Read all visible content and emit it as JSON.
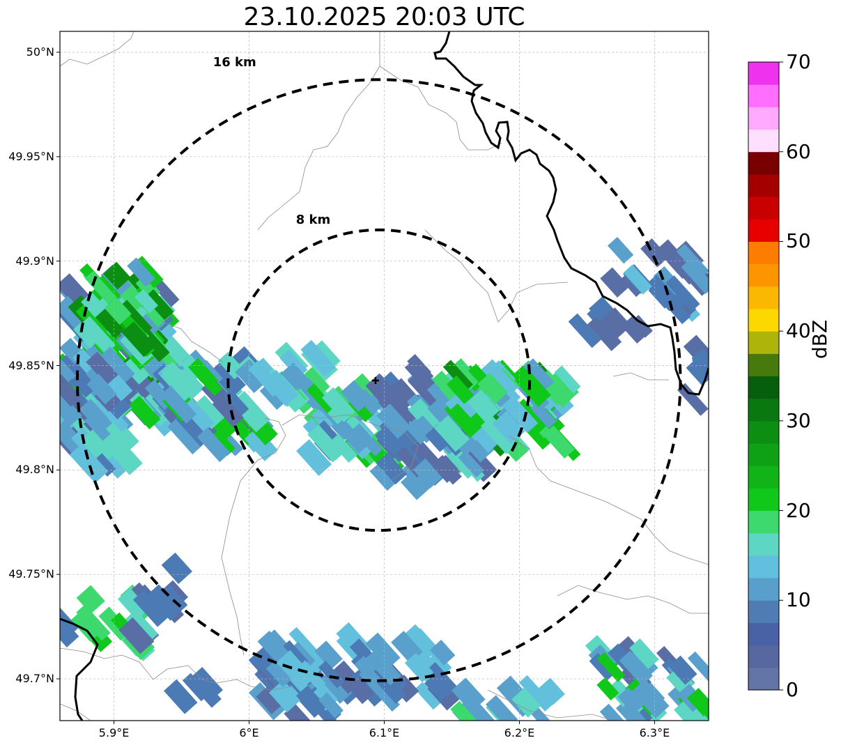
{
  "title": "23.10.2025 20:03 UTC",
  "map": {
    "extent": {
      "lon_min": 5.86,
      "lon_max": 6.34,
      "lat_min": 49.68,
      "lat_max": 50.01
    },
    "center": {
      "lon": 6.096,
      "lat": 49.843
    },
    "lat_ticks": [
      {
        "value": 50.0,
        "label": "50°N"
      },
      {
        "value": 49.95,
        "label": "49.95°N"
      },
      {
        "value": 49.9,
        "label": "49.9°N"
      },
      {
        "value": 49.85,
        "label": "49.85°N"
      },
      {
        "value": 49.8,
        "label": "49.8°N"
      },
      {
        "value": 49.75,
        "label": "49.75°N"
      },
      {
        "value": 49.7,
        "label": "49.7°N"
      }
    ],
    "lon_ticks": [
      {
        "value": 5.9,
        "label": "5.9°E"
      },
      {
        "value": 6.0,
        "label": "6°E"
      },
      {
        "value": 6.1,
        "label": "6.1°E"
      },
      {
        "value": 6.2,
        "label": "6.2°E"
      },
      {
        "value": 6.3,
        "label": "6.3°E"
      }
    ],
    "rings": [
      {
        "radius_km": 8,
        "label": "8 km"
      },
      {
        "radius_km": 16,
        "label": "16 km"
      }
    ]
  },
  "colorbar": {
    "label": "dBZ",
    "min": 0,
    "max": 70,
    "ticks": [
      "0",
      "10",
      "20",
      "30",
      "40",
      "50",
      "60",
      "70"
    ],
    "colors": [
      "#6374a6",
      "#5768a0",
      "#4862a5",
      "#4f7cb3",
      "#589fcb",
      "#62bfdd",
      "#5dd6c4",
      "#3ed96e",
      "#10c81a",
      "#10b416",
      "#0ea115",
      "#0c8e12",
      "#0a7810",
      "#065f0c",
      "#477a0c",
      "#afb40a",
      "#fcd700",
      "#fcb700",
      "#fc9600",
      "#fc7d00",
      "#e60000",
      "#c80000",
      "#a50000",
      "#780000",
      "#ffdfff",
      "#ffaaff",
      "#ff6eff",
      "#ee32ee"
    ]
  },
  "echo_colors": {
    "weak": "#5a6ea6",
    "weak2": "#4b7ab5",
    "light": "#5aa0cc",
    "cyan": "#62c0dd",
    "teal": "#5dd6c4",
    "lime": "#3ed96e",
    "green": "#10c81a",
    "dgreen": "#0c8e12"
  }
}
